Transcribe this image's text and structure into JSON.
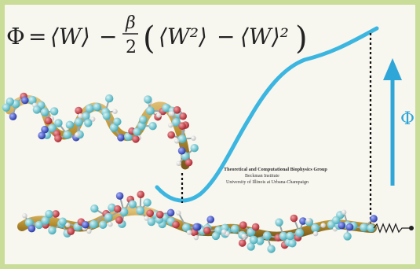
{
  "equation": {
    "lhs": "Φ",
    "equals": "=",
    "term1": "⟨W⟩",
    "minus1": "−",
    "frac_num": "β",
    "frac_den": "2",
    "paren_open": "(",
    "term2": "⟨W²⟩",
    "minus2": "−",
    "term3": "⟨W⟩²",
    "paren_close": ")"
  },
  "axis_label": "Φ",
  "credit": {
    "line1": "Theoretical and Computational Biophysics Group",
    "line2": "Beckman Institute",
    "line3": "University of Illinois at Urbana-Champaign"
  },
  "colors": {
    "curve": "#3bb6e0",
    "arrow": "#2fa6d8",
    "ribbon": "#b8902f",
    "carbon": "#5ec3cf",
    "oxygen": "#c6303a",
    "nitrogen": "#3a4fc0",
    "hydrogen": "#f2f2f2",
    "border": "#c9dc98"
  }
}
